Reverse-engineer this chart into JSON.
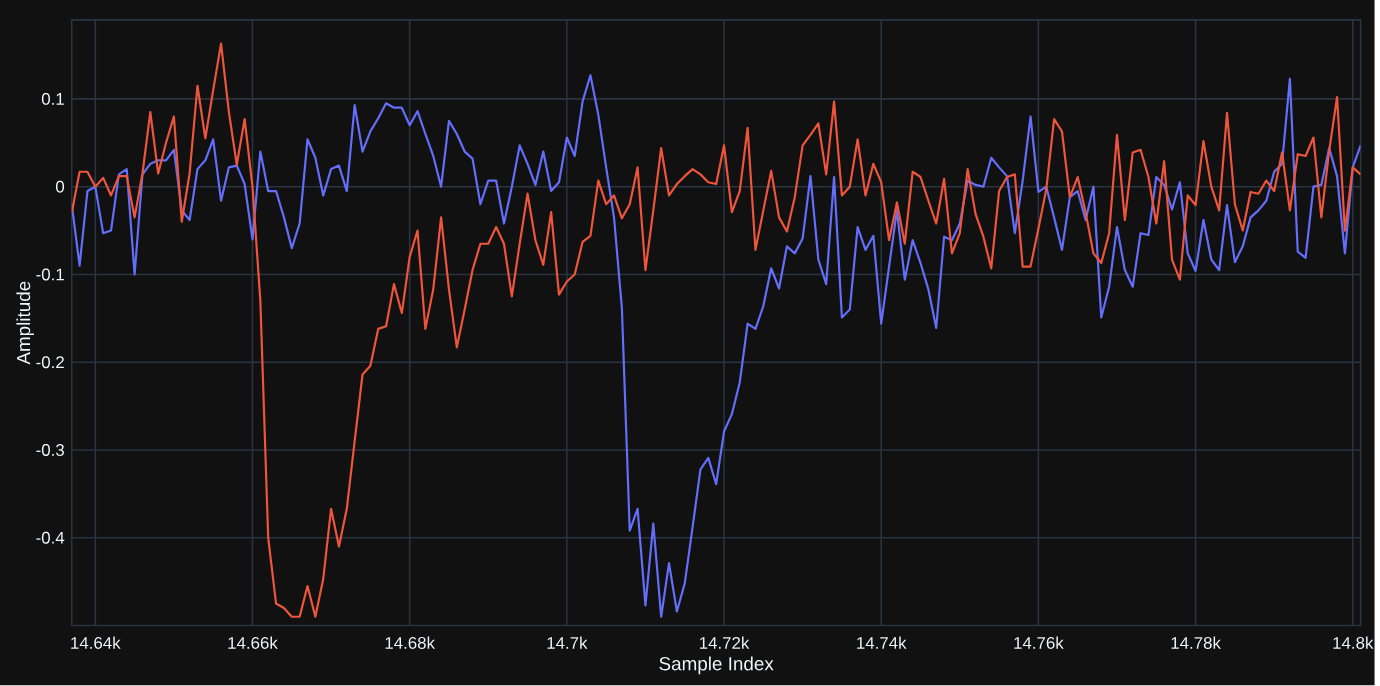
{
  "chart_data": {
    "type": "line",
    "xlabel": "Sample Index",
    "ylabel": "Amplitude",
    "x": [
      14637,
      14638,
      14639,
      14640,
      14641,
      14642,
      14643,
      14644,
      14645,
      14646,
      14647,
      14648,
      14649,
      14650,
      14651,
      14652,
      14653,
      14654,
      14655,
      14656,
      14657,
      14658,
      14659,
      14660,
      14661,
      14662,
      14663,
      14664,
      14665,
      14666,
      14667,
      14668,
      14669,
      14670,
      14671,
      14672,
      14673,
      14674,
      14675,
      14676,
      14677,
      14678,
      14679,
      14680,
      14681,
      14682,
      14683,
      14684,
      14685,
      14686,
      14687,
      14688,
      14689,
      14690,
      14691,
      14692,
      14693,
      14694,
      14695,
      14696,
      14697,
      14698,
      14699,
      14700,
      14701,
      14702,
      14703,
      14704,
      14705,
      14706,
      14707,
      14708,
      14709,
      14710,
      14711,
      14712,
      14713,
      14714,
      14715,
      14716,
      14717,
      14718,
      14719,
      14720,
      14721,
      14722,
      14723,
      14724,
      14725,
      14726,
      14727,
      14728,
      14729,
      14730,
      14731,
      14732,
      14733,
      14734,
      14735,
      14736,
      14737,
      14738,
      14739,
      14740,
      14741,
      14742,
      14743,
      14744,
      14745,
      14746,
      14747,
      14748,
      14749,
      14750,
      14751,
      14752,
      14753,
      14754,
      14755,
      14756,
      14757,
      14758,
      14759,
      14760,
      14761,
      14762,
      14763,
      14764,
      14765,
      14766,
      14767,
      14768,
      14769,
      14770,
      14771,
      14772,
      14773,
      14774,
      14775,
      14776,
      14777,
      14778,
      14779,
      14780,
      14781,
      14782,
      14783,
      14784,
      14785,
      14786,
      14787,
      14788,
      14789,
      14790,
      14791,
      14792,
      14793,
      14794,
      14795,
      14796,
      14797,
      14798,
      14799,
      14800,
      14801
    ],
    "series": [
      {
        "color": "#636efa",
        "values": [
          -0.02,
          -0.09,
          -0.005,
          0,
          -0.053,
          -0.05,
          0.014,
          0.02,
          -0.1,
          0.014,
          0.026,
          0.03,
          0.03,
          0.042,
          -0.027,
          -0.038,
          0.02,
          0.03,
          0.054,
          -0.016,
          0.022,
          0.024,
          0.003,
          -0.06,
          0.04,
          -0.005,
          -0.005,
          -0.035,
          -0.07,
          -0.042,
          0.054,
          0.033,
          -0.01,
          0.02,
          0.024,
          -0.005,
          0.093,
          0.04,
          0.063,
          0.078,
          0.095,
          0.09,
          0.09,
          0.07,
          0.086,
          0.06,
          0.035,
          0,
          0.075,
          0.06,
          0.04,
          0.032,
          -0.02,
          0.007,
          0.007,
          -0.042,
          0,
          0.047,
          0.026,
          0.002,
          0.04,
          -0.005,
          0.005,
          0.056,
          0.035,
          0.097,
          0.127,
          0.082,
          0.022,
          -0.035,
          -0.138,
          -0.392,
          -0.367,
          -0.477,
          -0.384,
          -0.49,
          -0.429,
          -0.484,
          -0.452,
          -0.388,
          -0.322,
          -0.309,
          -0.339,
          -0.279,
          -0.259,
          -0.223,
          -0.156,
          -0.162,
          -0.136,
          -0.093,
          -0.116,
          -0.068,
          -0.076,
          -0.059,
          0.012,
          -0.083,
          -0.111,
          0.011,
          -0.149,
          -0.14,
          -0.046,
          -0.072,
          -0.056,
          -0.156,
          -0.091,
          -0.027,
          -0.106,
          -0.061,
          -0.087,
          -0.117,
          -0.161,
          -0.057,
          -0.061,
          -0.042,
          0.007,
          0.002,
          0,
          0.033,
          0.022,
          0.012,
          -0.053,
          0.007,
          0.08,
          -0.006,
          0,
          -0.035,
          -0.072,
          -0.012,
          -0.005,
          -0.038,
          0,
          -0.149,
          -0.114,
          -0.046,
          -0.095,
          -0.114,
          -0.053,
          -0.055,
          0.011,
          0.002,
          -0.026,
          0.005,
          -0.076,
          -0.096,
          -0.038,
          -0.083,
          -0.095,
          -0.021,
          -0.086,
          -0.068,
          -0.035,
          -0.027,
          -0.016,
          0.017,
          0.026,
          0.123,
          -0.074,
          -0.081,
          0,
          0.002,
          0.044,
          0.012,
          -0.076,
          0.022,
          0.047
        ]
      },
      {
        "color": "#ef553b",
        "values": [
          -0.03,
          0.017,
          0.017,
          0,
          0.01,
          -0.01,
          0.012,
          0.012,
          -0.035,
          0.015,
          0.085,
          0.015,
          0.05,
          0.08,
          -0.04,
          0.015,
          0.115,
          0.055,
          0.11,
          0.163,
          0.085,
          0.025,
          0.077,
          0,
          -0.13,
          -0.4,
          -0.475,
          -0.48,
          -0.49,
          -0.49,
          -0.455,
          -0.49,
          -0.447,
          -0.367,
          -0.41,
          -0.367,
          -0.29,
          -0.214,
          -0.204,
          -0.162,
          -0.159,
          -0.111,
          -0.144,
          -0.08,
          -0.05,
          -0.162,
          -0.117,
          -0.035,
          -0.117,
          -0.183,
          -0.14,
          -0.095,
          -0.065,
          -0.065,
          -0.046,
          -0.065,
          -0.125,
          -0.065,
          -0.008,
          -0.061,
          -0.089,
          -0.029,
          -0.123,
          -0.108,
          -0.1,
          -0.063,
          -0.056,
          0.007,
          -0.02,
          -0.01,
          -0.036,
          -0.02,
          0.022,
          -0.095,
          -0.027,
          0.044,
          -0.01,
          0.003,
          0.012,
          0.02,
          0.014,
          0.005,
          0.003,
          0.047,
          -0.029,
          -0.005,
          0.067,
          -0.072,
          -0.027,
          0.018,
          -0.035,
          -0.051,
          -0.012,
          0.047,
          0.059,
          0.072,
          0.014,
          0.097,
          -0.01,
          0,
          0.054,
          -0.01,
          0.026,
          0.005,
          -0.061,
          -0.018,
          -0.065,
          0.017,
          0.011,
          -0.016,
          -0.042,
          0.009,
          -0.076,
          -0.053,
          0.02,
          -0.031,
          -0.057,
          -0.093,
          -0.005,
          0.011,
          0.014,
          -0.091,
          -0.091,
          -0.048,
          -0.003,
          0.077,
          0.063,
          -0.012,
          0.011,
          -0.029,
          -0.076,
          -0.087,
          -0.053,
          0.059,
          -0.038,
          0.039,
          0.042,
          0.011,
          -0.042,
          0.029,
          -0.083,
          -0.106,
          -0.01,
          -0.021,
          0.052,
          0,
          -0.027,
          0.084,
          -0.02,
          -0.05,
          -0.006,
          -0.008,
          0.007,
          -0.005,
          0.039,
          -0.027,
          0.037,
          0.035,
          0.056,
          -0.035,
          0.041,
          0.102,
          -0.05,
          0.022,
          0.014
        ]
      }
    ],
    "xlim": [
      14637,
      14801
    ],
    "ylim": [
      -0.5,
      0.19
    ],
    "xticks": [
      {
        "value": 14640,
        "label": "14.64k"
      },
      {
        "value": 14660,
        "label": "14.66k"
      },
      {
        "value": 14680,
        "label": "14.68k"
      },
      {
        "value": 14700,
        "label": "14.7k"
      },
      {
        "value": 14720,
        "label": "14.72k"
      },
      {
        "value": 14740,
        "label": "14.74k"
      },
      {
        "value": 14760,
        "label": "14.76k"
      },
      {
        "value": 14780,
        "label": "14.78k"
      },
      {
        "value": 14800,
        "label": "14.8k"
      }
    ],
    "yticks": [
      -0.4,
      -0.3,
      -0.2,
      -0.1,
      0,
      0.1
    ],
    "grid": true
  }
}
